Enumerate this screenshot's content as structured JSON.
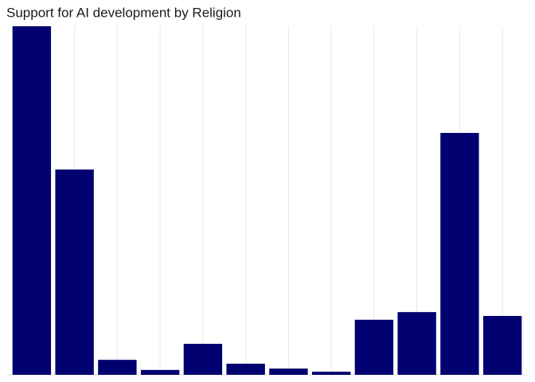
{
  "chart_data": {
    "type": "bar",
    "title": "Support for AI development by Religion",
    "categories": [
      null,
      null,
      null,
      null,
      null,
      null,
      null,
      null,
      null,
      null,
      null,
      null
    ],
    "values": [
      100,
      58.9,
      4.3,
      1.4,
      8.9,
      3.2,
      1.8,
      0.9,
      15.8,
      18,
      69.4,
      16.9
    ],
    "color": "#000070",
    "ylim": [
      0,
      100
    ],
    "grid": true
  }
}
